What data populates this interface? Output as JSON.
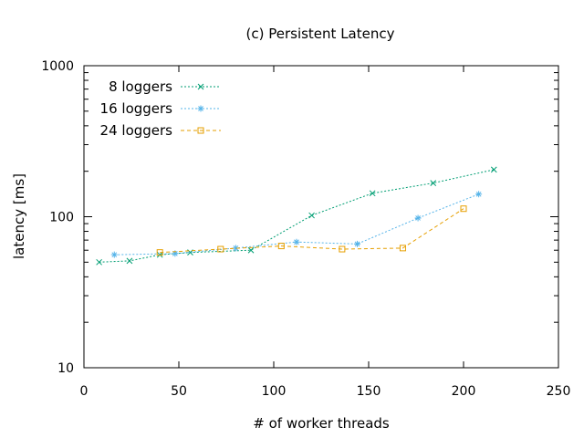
{
  "chart_data": {
    "type": "line",
    "title": "(c) Persistent Latency",
    "xlabel": "# of worker threads",
    "ylabel": "latency [ms]",
    "xlim": [
      0,
      250
    ],
    "ylim": [
      10,
      1000
    ],
    "yscale": "log",
    "grid": false,
    "legend_position": "top-left",
    "x_ticks": [
      0,
      50,
      100,
      150,
      200,
      250
    ],
    "x_tick_labels": [
      "0",
      "50",
      "100",
      "150",
      "200",
      "250"
    ],
    "y_ticks": [
      10,
      100,
      1000
    ],
    "y_tick_labels": [
      "10",
      "100",
      "1000"
    ],
    "series": [
      {
        "name": "8 loggers",
        "color": "#009e73",
        "marker": "x",
        "dash": "dotted",
        "x": [
          8,
          24,
          40,
          56,
          88,
          120,
          152,
          184,
          216
        ],
        "y": [
          50,
          51,
          56,
          58,
          60,
          102,
          143,
          167,
          205
        ]
      },
      {
        "name": "16 loggers",
        "color": "#56b4e9",
        "marker": "asterisk",
        "dash": "dotted",
        "x": [
          16,
          48,
          80,
          112,
          144,
          176,
          208
        ],
        "y": [
          56,
          57,
          62,
          68,
          66,
          98,
          141
        ]
      },
      {
        "name": "24 loggers",
        "color": "#e69f00",
        "marker": "square",
        "dash": "dashed",
        "x": [
          40,
          72,
          104,
          136,
          168,
          200
        ],
        "y": [
          58,
          61,
          64,
          61,
          62,
          113
        ]
      }
    ]
  }
}
